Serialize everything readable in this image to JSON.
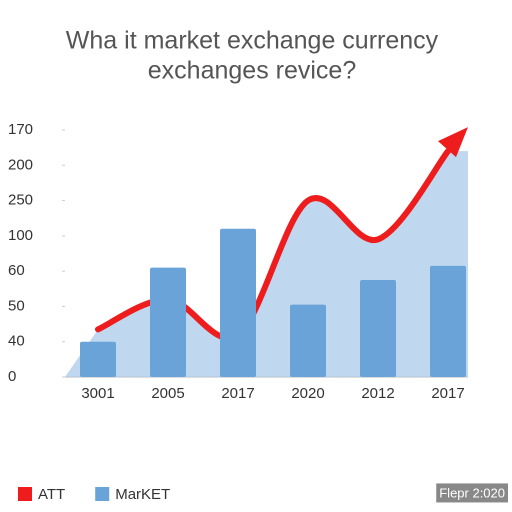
{
  "chart_data": {
    "type": "bar-line",
    "title": "Wha it market exchange currency",
    "subtitle": "exchanges revice?",
    "categories": [
      "3001",
      "2005",
      "2017",
      "2020",
      "2012",
      "2017"
    ],
    "series": [
      {
        "name": "ATT",
        "color": "#ee1c1c",
        "kind": "line",
        "values": [
          1.35,
          2.2,
          1.2,
          5.0,
          3.9,
          6.4
        ]
      },
      {
        "name": "MarKET",
        "color": "#6aa3d8",
        "kind": "bar",
        "values": [
          1.0,
          3.1,
          4.2,
          2.05,
          2.75,
          3.15
        ]
      }
    ],
    "ylim": [
      0,
      7
    ],
    "yticks": [
      {
        "value": 0,
        "label": "0"
      },
      {
        "value": 1,
        "label": "40"
      },
      {
        "value": 2,
        "label": "50"
      },
      {
        "value": 3,
        "label": "60"
      },
      {
        "value": 4,
        "label": "100"
      },
      {
        "value": 5,
        "label": "250"
      },
      {
        "value": 6,
        "label": "200"
      },
      {
        "value": 7,
        "label": "170"
      }
    ],
    "footer": "Flepr 2:020"
  }
}
